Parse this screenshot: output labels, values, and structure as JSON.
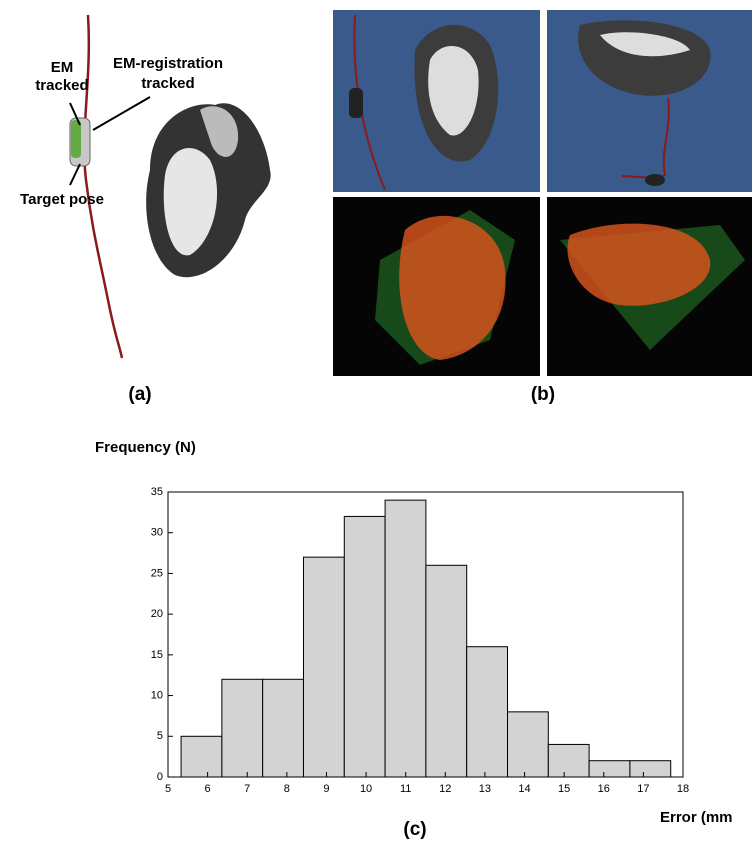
{
  "panel_a": {
    "caption": "(a)",
    "em_tracked": [
      "EM",
      "tracked"
    ],
    "em_registration_tracked": [
      "EM-registration",
      "tracked"
    ],
    "target_pose": "Target pose"
  },
  "panel_b": {
    "caption": "(b)"
  },
  "chart_data": {
    "type": "histogram",
    "caption": "(c)",
    "y_label": "Frequency  (N)",
    "x_label": "Error (mm",
    "bins": [
      5.33,
      6.36,
      7.39,
      8.42,
      9.45,
      10.48,
      11.51,
      12.54,
      13.57,
      14.6,
      15.63,
      16.66,
      17.69
    ],
    "values": [
      5,
      12,
      12,
      27,
      32,
      34,
      26,
      16,
      8,
      4,
      2,
      2
    ],
    "color": "#d3d3d3",
    "xlim": [
      5,
      18
    ],
    "ylim": [
      0,
      35
    ],
    "xticks": [
      5,
      6,
      7,
      8,
      9,
      10,
      11,
      12,
      13,
      14,
      15,
      16,
      17,
      18
    ],
    "yticks": [
      0,
      5,
      10,
      15,
      20,
      25,
      30,
      35
    ]
  }
}
